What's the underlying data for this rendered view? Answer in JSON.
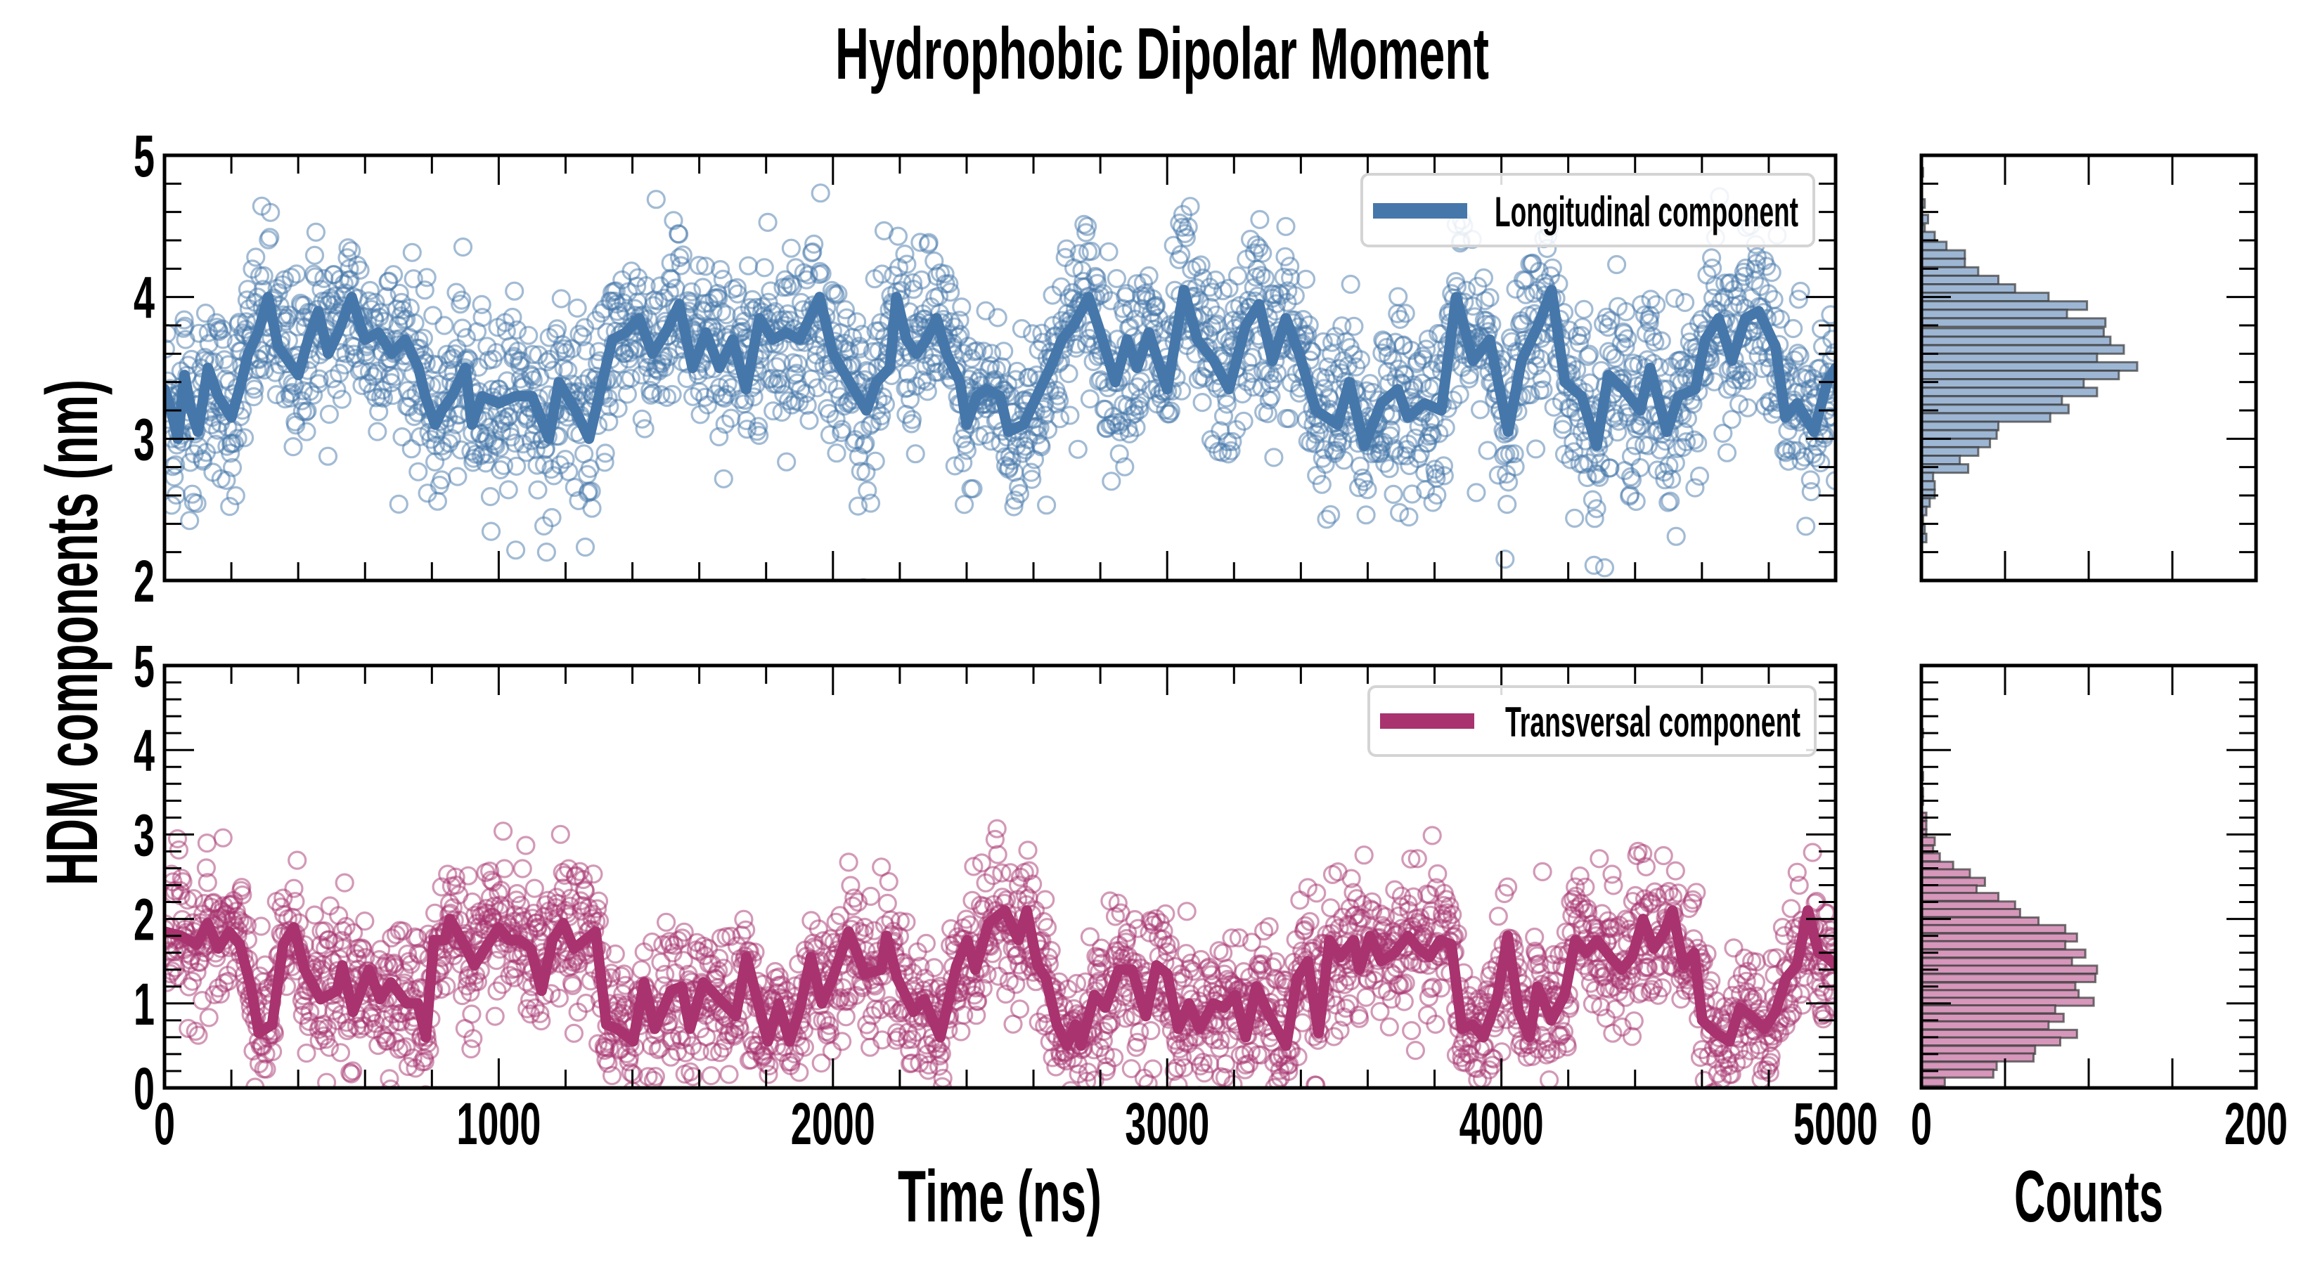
{
  "chart_data": {
    "type": "scatter",
    "title": "Hydrophobic Dipolar Moment",
    "ylabel": "HDM components (nm)",
    "xlabel": "Time (ns)",
    "hist_xlabel": "Counts",
    "colors": {
      "longitudinal": "#4677aa",
      "transversal": "#a8336f",
      "longitudinal_hist": "#9db6d3",
      "transversal_hist": "#d697bb",
      "hist_edge": "#3a3a3a"
    },
    "panels": [
      {
        "name": "longitudinal",
        "legend": "Longitudinal component",
        "xlim": [
          0,
          5000
        ],
        "ylim": [
          2,
          5
        ],
        "xticks": [
          0,
          1000,
          2000,
          3000,
          4000,
          5000
        ],
        "yticks": [
          2,
          3,
          4,
          5
        ],
        "ytick_labels": [
          "2",
          "3",
          "4",
          "5"
        ],
        "scatter_noise_sd": 0.32,
        "scatter_points": 2500,
        "smoothed": {
          "x": [
            0,
            20,
            40,
            60,
            80,
            100,
            130,
            160,
            200,
            230,
            250,
            280,
            310,
            340,
            370,
            400,
            430,
            460,
            490,
            520,
            560,
            600,
            640,
            680,
            720,
            760,
            780,
            810,
            830,
            860,
            900,
            920,
            950,
            1000,
            1050,
            1100,
            1150,
            1180,
            1230,
            1270,
            1300,
            1320,
            1340,
            1380,
            1420,
            1460,
            1500,
            1540,
            1580,
            1620,
            1660,
            1700,
            1740,
            1780,
            1820,
            1860,
            1900,
            1940,
            1960,
            2000,
            2050,
            2100,
            2130,
            2170,
            2190,
            2220,
            2250,
            2280,
            2310,
            2340,
            2380,
            2400,
            2430,
            2460,
            2500,
            2525,
            2570,
            2620,
            2650,
            2685,
            2720,
            2765,
            2800,
            2845,
            2880,
            2910,
            2945,
            3000,
            3050,
            3090,
            3140,
            3185,
            3235,
            3275,
            3315,
            3355,
            3395,
            3445,
            3510,
            3545,
            3590,
            3640,
            3690,
            3720,
            3770,
            3820,
            3865,
            3915,
            3965,
            4020,
            4060,
            4110,
            4150,
            4190,
            4240,
            4285,
            4320,
            4365,
            4415,
            4445,
            4495,
            4530,
            4580,
            4610,
            4650,
            4690,
            4730,
            4770,
            4820,
            4850,
            4885,
            4935,
            4975,
            5000
          ],
          "y": [
            3.35,
            3.2,
            3.0,
            3.45,
            3.2,
            3.05,
            3.5,
            3.3,
            3.15,
            3.4,
            3.6,
            3.75,
            4.0,
            3.65,
            3.55,
            3.45,
            3.7,
            3.9,
            3.6,
            3.75,
            4.0,
            3.7,
            3.75,
            3.6,
            3.7,
            3.5,
            3.3,
            3.1,
            3.2,
            3.3,
            3.5,
            3.1,
            3.3,
            3.25,
            3.3,
            3.3,
            3.0,
            3.4,
            3.2,
            3.0,
            3.3,
            3.5,
            3.7,
            3.75,
            3.85,
            3.6,
            3.75,
            3.95,
            3.5,
            3.75,
            3.5,
            3.7,
            3.35,
            3.85,
            3.7,
            3.75,
            3.7,
            3.9,
            4.0,
            3.6,
            3.4,
            3.2,
            3.4,
            3.5,
            4.0,
            3.7,
            3.6,
            3.7,
            3.85,
            3.6,
            3.4,
            3.1,
            3.3,
            3.35,
            3.3,
            3.05,
            3.1,
            3.35,
            3.5,
            3.7,
            3.8,
            4.0,
            3.75,
            3.4,
            3.7,
            3.5,
            3.75,
            3.35,
            4.05,
            3.7,
            3.55,
            3.35,
            3.8,
            3.95,
            3.55,
            3.85,
            3.6,
            3.2,
            3.1,
            3.4,
            2.95,
            3.25,
            3.35,
            3.15,
            3.25,
            3.2,
            4.0,
            3.55,
            3.7,
            3.05,
            3.55,
            3.8,
            4.05,
            3.4,
            3.3,
            2.95,
            3.45,
            3.35,
            3.2,
            3.5,
            3.05,
            3.3,
            3.35,
            3.7,
            3.85,
            3.55,
            3.85,
            3.9,
            3.65,
            3.15,
            3.25,
            3.05,
            3.4,
            3.5
          ]
        },
        "histogram": {
          "xlim": [
            0,
            200
          ],
          "xticks": [
            0,
            50,
            100,
            150,
            200
          ],
          "xtick_labels": [
            "0",
            "200"
          ],
          "bin_width": 0.06,
          "bin_centers": [
            4.88,
            4.66,
            4.55,
            4.48,
            4.43,
            4.36,
            4.3,
            4.24,
            4.18,
            4.12,
            4.06,
            4.0,
            3.94,
            3.88,
            3.82,
            3.75,
            3.69,
            3.63,
            3.57,
            3.51,
            3.45,
            3.39,
            3.33,
            3.27,
            3.21,
            3.15,
            3.09,
            3.03,
            2.97,
            2.91,
            2.85,
            2.79,
            2.73,
            2.67,
            2.61,
            2.55,
            2.49,
            2.42,
            2.36,
            2.3
          ],
          "counts": [
            1,
            2,
            4,
            2,
            8,
            15,
            26,
            26,
            34,
            46,
            56,
            76,
            99,
            87,
            110,
            109,
            113,
            121,
            105,
            129,
            118,
            97,
            105,
            84,
            88,
            77,
            46,
            45,
            41,
            34,
            23,
            28,
            7,
            8,
            8,
            5,
            3,
            1,
            2,
            3
          ]
        }
      },
      {
        "name": "transversal",
        "legend": "Transversal component",
        "xlim": [
          0,
          5000
        ],
        "ylim": [
          0,
          5
        ],
        "xticks": [
          0,
          1000,
          2000,
          3000,
          4000,
          5000
        ],
        "xtick_labels": [
          "0",
          "1000",
          "2000",
          "3000",
          "4000",
          "5000"
        ],
        "yticks": [
          0,
          1,
          2,
          3,
          4,
          5
        ],
        "ytick_labels": [
          "0",
          "1",
          "2",
          "3",
          "4",
          "5"
        ],
        "scatter_noise_sd": 0.42,
        "scatter_points": 2500,
        "smoothed": {
          "x": [
            0,
            48,
            97,
            129,
            161,
            193,
            225,
            258,
            282,
            322,
            355,
            387,
            419,
            467,
            516,
            532,
            564,
            612,
            645,
            677,
            725,
            758,
            782,
            806,
            838,
            854,
            903,
            927,
            967,
            1000,
            1032,
            1064,
            1096,
            1128,
            1161,
            1193,
            1225,
            1257,
            1290,
            1322,
            1354,
            1402,
            1435,
            1467,
            1515,
            1548,
            1572,
            1612,
            1660,
            1709,
            1741,
            1773,
            1805,
            1838,
            1870,
            1902,
            1934,
            1967,
            1999,
            2047,
            2096,
            2144,
            2160,
            2192,
            2241,
            2273,
            2321,
            2370,
            2402,
            2426,
            2466,
            2515,
            2555,
            2580,
            2612,
            2637,
            2670,
            2700,
            2725,
            2742,
            2782,
            2815,
            2855,
            2895,
            2936,
            2968,
            3000,
            3033,
            3065,
            3097,
            3138,
            3170,
            3203,
            3235,
            3267,
            3300,
            3356,
            3389,
            3421,
            3453,
            3486,
            3518,
            3558,
            3575,
            3607,
            3640,
            3680,
            3720,
            3752,
            3785,
            3817,
            3850,
            3882,
            3914,
            3946,
            3987,
            4019,
            4052,
            4084,
            4108,
            4149,
            4189,
            4221,
            4254,
            4286,
            4326,
            4359,
            4391,
            4424,
            4456,
            4488,
            4512,
            4545,
            4577,
            4601,
            4642,
            4682,
            4714,
            4747,
            4787,
            4820,
            4852,
            4884,
            4917,
            4949,
            4973,
            5000
          ],
          "y": [
            1.85,
            1.8,
            1.7,
            1.95,
            1.65,
            1.85,
            1.7,
            1.2,
            0.65,
            0.75,
            1.7,
            1.9,
            1.4,
            1.05,
            1.15,
            1.45,
            0.9,
            1.4,
            1.05,
            1.25,
            1.0,
            1.0,
            0.6,
            1.75,
            1.75,
            2.0,
            1.65,
            1.45,
            1.7,
            1.9,
            1.75,
            1.75,
            1.65,
            1.15,
            1.75,
            1.95,
            1.65,
            1.75,
            1.85,
            0.75,
            0.7,
            0.55,
            1.25,
            0.7,
            1.15,
            1.2,
            0.7,
            1.25,
            1.05,
            0.85,
            1.55,
            1.05,
            0.55,
            1.0,
            0.55,
            0.95,
            1.55,
            1.0,
            1.3,
            1.85,
            1.35,
            1.4,
            1.8,
            1.3,
            0.9,
            1.05,
            0.6,
            1.45,
            1.75,
            1.4,
            1.95,
            2.1,
            1.75,
            2.1,
            1.45,
            1.3,
            0.75,
            0.5,
            0.75,
            0.5,
            1.1,
            0.95,
            1.4,
            1.4,
            0.85,
            1.45,
            1.35,
            0.7,
            1.0,
            0.7,
            1.0,
            0.95,
            1.1,
            0.6,
            1.2,
            0.9,
            0.5,
            1.3,
            1.5,
            0.65,
            1.75,
            1.55,
            1.75,
            1.4,
            1.8,
            1.5,
            1.6,
            1.8,
            1.65,
            1.55,
            1.75,
            1.7,
            0.7,
            0.75,
            0.6,
            1.05,
            1.8,
            0.9,
            0.6,
            1.2,
            0.8,
            1.1,
            1.75,
            1.6,
            1.75,
            1.55,
            1.4,
            1.55,
            2.0,
            1.65,
            1.85,
            2.1,
            1.45,
            1.6,
            0.8,
            0.65,
            0.55,
            0.95,
            0.85,
            0.7,
            0.9,
            1.3,
            1.45,
            2.1,
            1.6,
            1.55,
            1.45
          ]
        },
        "histogram": {
          "xlim": [
            0,
            200
          ],
          "xticks": [
            0,
            50,
            100,
            150,
            200
          ],
          "xtick_labels": [
            "0",
            "200"
          ],
          "bin_width": 0.095,
          "bin_centers": [
            4.2,
            3.69,
            3.5,
            3.4,
            3.21,
            3.11,
            3.01,
            2.92,
            2.82,
            2.73,
            2.63,
            2.54,
            2.44,
            2.35,
            2.26,
            2.16,
            2.07,
            1.97,
            1.88,
            1.78,
            1.69,
            1.59,
            1.49,
            1.4,
            1.3,
            1.2,
            1.11,
            1.02,
            0.93,
            0.83,
            0.74,
            0.64,
            0.55,
            0.45,
            0.36,
            0.26,
            0.17,
            0.07
          ],
          "counts": [
            1,
            1,
            1,
            1,
            3,
            3,
            3,
            8,
            7,
            11,
            19,
            29,
            38,
            33,
            46,
            56,
            59,
            70,
            86,
            93,
            86,
            98,
            90,
            105,
            104,
            92,
            94,
            103,
            80,
            85,
            76,
            93,
            83,
            68,
            67,
            45,
            43,
            14
          ]
        }
      }
    ]
  }
}
